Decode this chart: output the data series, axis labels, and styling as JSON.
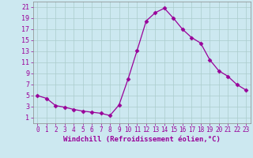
{
  "x": [
    0,
    1,
    2,
    3,
    4,
    5,
    6,
    7,
    8,
    9,
    10,
    11,
    12,
    13,
    14,
    15,
    16,
    17,
    18,
    19,
    20,
    21,
    22,
    23
  ],
  "y": [
    5.0,
    4.5,
    3.2,
    2.9,
    2.5,
    2.2,
    2.0,
    1.8,
    1.4,
    3.3,
    8.0,
    13.2,
    18.5,
    20.0,
    20.8,
    19.0,
    17.0,
    15.5,
    14.5,
    11.5,
    9.5,
    8.5,
    7.0,
    6.0
  ],
  "line_color": "#990099",
  "marker": "D",
  "marker_size": 2.5,
  "bg_color": "#cce8f0",
  "grid_color": "#aacccc",
  "xlabel": "Windchill (Refroidissement éolien,°C)",
  "xlabel_color": "#990099",
  "tick_color": "#990099",
  "ylim": [
    0,
    22
  ],
  "xlim": [
    -0.5,
    23.5
  ],
  "yticks": [
    1,
    3,
    5,
    7,
    9,
    11,
    13,
    15,
    17,
    19,
    21
  ],
  "xticks": [
    0,
    1,
    2,
    3,
    4,
    5,
    6,
    7,
    8,
    9,
    10,
    11,
    12,
    13,
    14,
    15,
    16,
    17,
    18,
    19,
    20,
    21,
    22,
    23
  ],
  "font_family": "monospace",
  "xlabel_fontsize": 6.5,
  "tick_fontsize_x": 5.5,
  "tick_fontsize_y": 6.0
}
